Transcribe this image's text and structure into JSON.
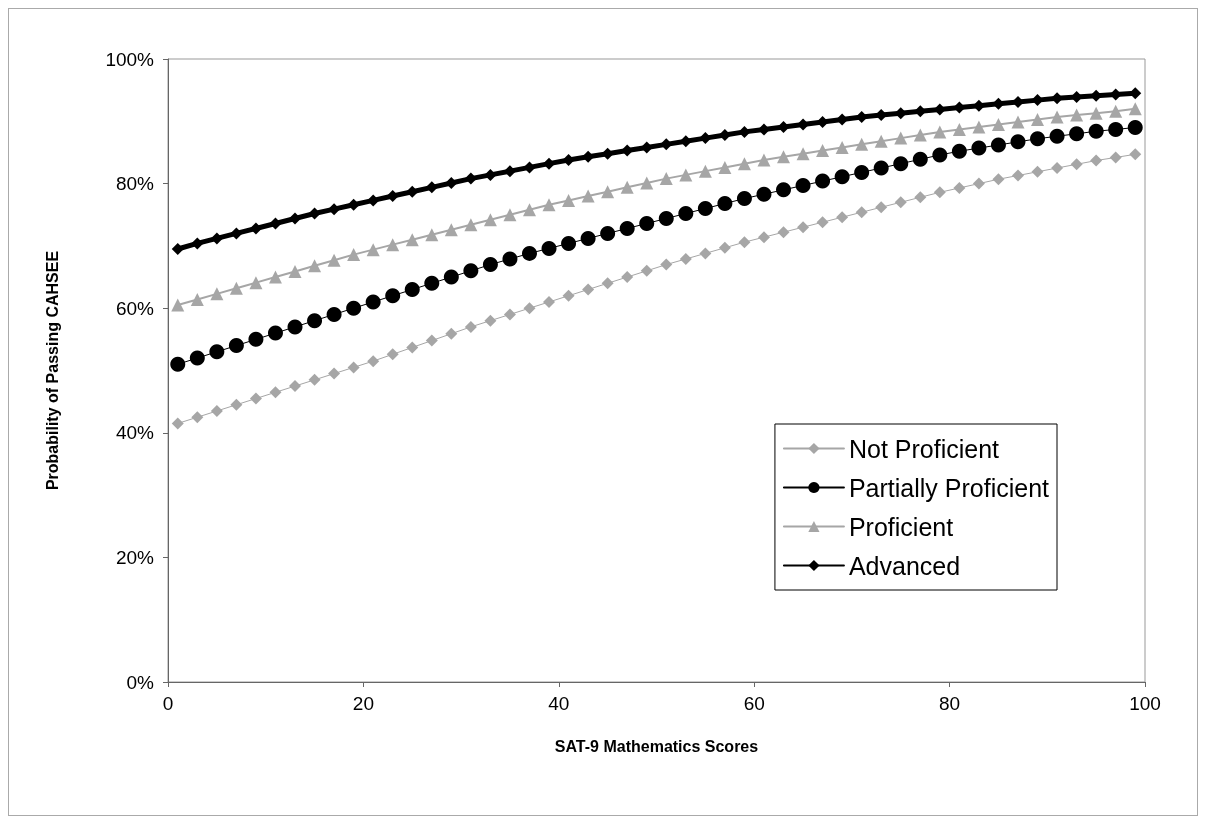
{
  "chart_data": {
    "type": "line",
    "xlabel": "SAT-9 Mathematics Scores",
    "ylabel": "Probability of Passing CAHSEE",
    "x": [
      1,
      3,
      5,
      7,
      9,
      11,
      13,
      15,
      17,
      19,
      21,
      23,
      25,
      27,
      29,
      31,
      33,
      35,
      37,
      39,
      41,
      43,
      45,
      47,
      49,
      51,
      53,
      55,
      57,
      59,
      61,
      63,
      65,
      67,
      69,
      71,
      73,
      75,
      77,
      79,
      81,
      83,
      85,
      87,
      89,
      91,
      93,
      95,
      97,
      99
    ],
    "series": [
      {
        "name": "Not Proficient",
        "color": "#a6a6a6",
        "marker": "diamond",
        "values": [
          41.5,
          42.5,
          43.5,
          44.5,
          45.5,
          46.5,
          47.5,
          48.5,
          49.5,
          50.5,
          51.5,
          52.6,
          53.7,
          54.8,
          55.9,
          57.0,
          58.0,
          59.0,
          60.0,
          61.0,
          62.0,
          63.0,
          64.0,
          65.0,
          66.0,
          67.0,
          67.9,
          68.8,
          69.7,
          70.6,
          71.4,
          72.2,
          73.0,
          73.8,
          74.6,
          75.4,
          76.2,
          77.0,
          77.8,
          78.6,
          79.3,
          80.0,
          80.7,
          81.3,
          81.9,
          82.5,
          83.1,
          83.7,
          84.2,
          84.7
        ]
      },
      {
        "name": "Partially Proficient",
        "color": "#000000",
        "marker": "circle",
        "values": [
          51.0,
          52.0,
          53.0,
          54.0,
          55.0,
          56.0,
          57.0,
          58.0,
          59.0,
          60.0,
          61.0,
          62.0,
          63.0,
          64.0,
          65.0,
          66.0,
          67.0,
          67.9,
          68.8,
          69.6,
          70.4,
          71.2,
          72.0,
          72.8,
          73.6,
          74.4,
          75.2,
          76.0,
          76.8,
          77.6,
          78.3,
          79.0,
          79.7,
          80.4,
          81.1,
          81.8,
          82.5,
          83.2,
          83.9,
          84.6,
          85.2,
          85.7,
          86.2,
          86.7,
          87.2,
          87.6,
          88.0,
          88.4,
          88.7,
          89.0
        ]
      },
      {
        "name": "Proficient",
        "color": "#a6a6a6",
        "marker": "triangle",
        "values": [
          60.5,
          61.4,
          62.3,
          63.2,
          64.1,
          65.0,
          65.9,
          66.8,
          67.7,
          68.6,
          69.4,
          70.2,
          71.0,
          71.8,
          72.6,
          73.4,
          74.2,
          75.0,
          75.8,
          76.6,
          77.3,
          78.0,
          78.7,
          79.4,
          80.1,
          80.8,
          81.4,
          82.0,
          82.6,
          83.2,
          83.8,
          84.3,
          84.8,
          85.3,
          85.8,
          86.3,
          86.8,
          87.3,
          87.8,
          88.3,
          88.7,
          89.1,
          89.5,
          89.9,
          90.3,
          90.7,
          91.0,
          91.3,
          91.6,
          92.0
        ]
      },
      {
        "name": "Advanced",
        "color": "#000000",
        "marker": "diamond",
        "values": [
          69.5,
          70.4,
          71.2,
          72.0,
          72.8,
          73.6,
          74.4,
          75.2,
          75.9,
          76.6,
          77.3,
          78.0,
          78.7,
          79.4,
          80.1,
          80.8,
          81.4,
          82.0,
          82.6,
          83.2,
          83.8,
          84.3,
          84.8,
          85.3,
          85.8,
          86.3,
          86.8,
          87.3,
          87.8,
          88.3,
          88.7,
          89.1,
          89.5,
          89.9,
          90.3,
          90.7,
          91.0,
          91.3,
          91.6,
          91.9,
          92.2,
          92.5,
          92.8,
          93.1,
          93.4,
          93.7,
          93.9,
          94.1,
          94.3,
          94.5
        ]
      }
    ],
    "xlim": [
      0,
      100
    ],
    "xticks": [
      0,
      20,
      40,
      60,
      80,
      100
    ],
    "ylim": [
      0,
      100
    ],
    "yticks": [
      {
        "value": 0,
        "label": "0%"
      },
      {
        "value": 20,
        "label": "20%"
      },
      {
        "value": 40,
        "label": "40%"
      },
      {
        "value": 60,
        "label": "60%"
      },
      {
        "value": 80,
        "label": "80%"
      },
      {
        "value": 100,
        "label": "100%"
      }
    ],
    "grid": false,
    "legend": "bottom right",
    "line_style": "solid"
  }
}
